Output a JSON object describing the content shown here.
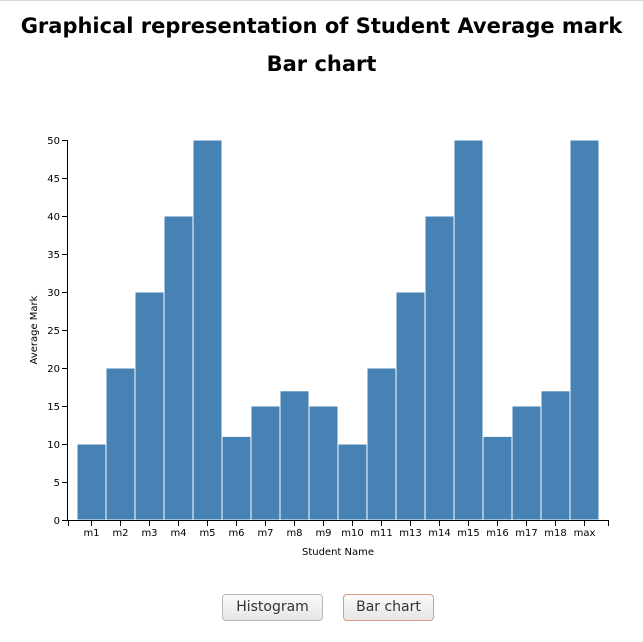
{
  "header": {
    "title": "Graphical representation of Student Average mark",
    "subtitle": "Bar chart"
  },
  "buttons": {
    "histogram_label": "Histogram",
    "bar_chart_label": "Bar chart"
  },
  "colors": {
    "bar_fill": "#4682b4",
    "bar_stroke": "#ffffff"
  },
  "chart_data": {
    "type": "bar",
    "categories": [
      "m1",
      "m2",
      "m3",
      "m4",
      "m5",
      "m6",
      "m7",
      "m8",
      "m9",
      "m10",
      "m11",
      "m13",
      "m14",
      "m15",
      "m16",
      "m17",
      "m18",
      "max"
    ],
    "values": [
      10,
      20,
      30,
      40,
      50,
      11,
      15,
      17,
      15,
      10,
      20,
      30,
      40,
      50,
      11,
      15,
      17,
      50
    ],
    "xlabel": "Student Name",
    "ylabel": "Average Mark",
    "ylim": [
      0,
      50
    ],
    "yticks": [
      0,
      5,
      10,
      15,
      20,
      25,
      30,
      35,
      40,
      45,
      50
    ],
    "grid": false
  }
}
